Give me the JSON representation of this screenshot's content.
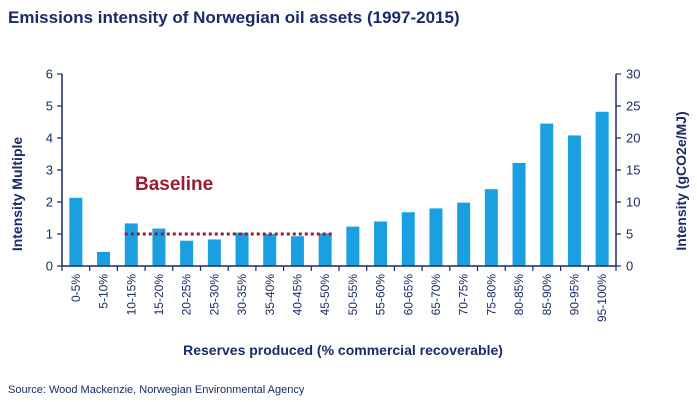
{
  "chart_data": {
    "type": "bar",
    "title": "Emissions intensity of Norwegian oil assets (1997-2015)",
    "xlabel": "Reserves produced (% commercial recoverable)",
    "ylabel": "Intensity Multiple",
    "y2label": "Intensity (gCO2e/MJ)",
    "ylim": [
      0,
      6
    ],
    "y2lim": [
      0,
      30
    ],
    "yticks": [
      "0",
      "1",
      "2",
      "3",
      "4",
      "5",
      "6"
    ],
    "y2ticks": [
      "0",
      "5",
      "10",
      "15",
      "20",
      "25",
      "30"
    ],
    "categories": [
      "0-5%",
      "5-10%",
      "10-15%",
      "15-20%",
      "20-25%",
      "25-30%",
      "30-35%",
      "35-40%",
      "40-45%",
      "45-50%",
      "50-55%",
      "55-60%",
      "60-65%",
      "65-70%",
      "70-75%",
      "75-80%",
      "80-85%",
      "85-90%",
      "90-95%",
      "95-100%"
    ],
    "values": [
      2.13,
      0.44,
      1.33,
      1.17,
      0.79,
      0.83,
      1.04,
      1.0,
      0.93,
      1.02,
      1.23,
      1.39,
      1.68,
      1.8,
      1.98,
      2.4,
      3.22,
      4.45,
      4.08,
      4.82
    ],
    "baseline": {
      "label": "Baseline",
      "value": 1.0,
      "from": "10-15%",
      "to": "45-50%"
    },
    "grid": false,
    "colors": {
      "bar": "#1aa0e0",
      "axis": "#1a2a6c",
      "baseline": "#9b1b30"
    }
  },
  "source": "Source: Wood Mackenzie, Norwegian Environmental Agency"
}
